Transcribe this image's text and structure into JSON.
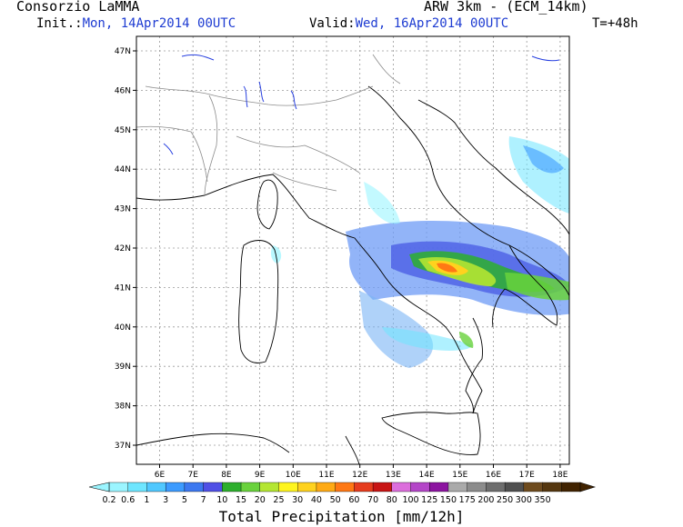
{
  "header": {
    "org": "Consorzio LaMMA",
    "model": "ARW 3km - (ECM_14km)",
    "init_label": "Init.:",
    "init_value": "Mon, 14Apr2014 00UTC",
    "valid_label": "Valid:",
    "valid_value": "Wed, 16Apr2014 00UTC",
    "lead": "T=+48h"
  },
  "map": {
    "lon_ticks": [
      "6E",
      "7E",
      "8E",
      "9E",
      "10E",
      "11E",
      "12E",
      "13E",
      "14E",
      "15E",
      "16E",
      "17E",
      "18E"
    ],
    "lat_ticks": [
      "47N",
      "46N",
      "45N",
      "44N",
      "43N",
      "42N",
      "41N",
      "40N",
      "39N",
      "38N",
      "37N"
    ],
    "grid": true
  },
  "colorbar": {
    "title": "Total Precipitation [mm/12h]",
    "labels": [
      "0.2",
      "0.6",
      "1",
      "3",
      "5",
      "7",
      "10",
      "15",
      "20",
      "25",
      "30",
      "40",
      "50",
      "60",
      "70",
      "80",
      "100",
      "125",
      "150",
      "175",
      "200",
      "250",
      "300",
      "350"
    ],
    "colors": [
      "#9bf5ff",
      "#6ee6ff",
      "#50c8ff",
      "#3c9bff",
      "#3c78f0",
      "#5050e6",
      "#2daf2d",
      "#69d23c",
      "#b4e632",
      "#fff51e",
      "#ffd21e",
      "#ffaa14",
      "#ff7814",
      "#e63c1e",
      "#c81414",
      "#dc6edc",
      "#b446c8",
      "#8c14a0",
      "#aaaaaa",
      "#8c8c8c",
      "#6e6e6e",
      "#505050",
      "#6e4b1e",
      "#55370f",
      "#412300"
    ]
  }
}
